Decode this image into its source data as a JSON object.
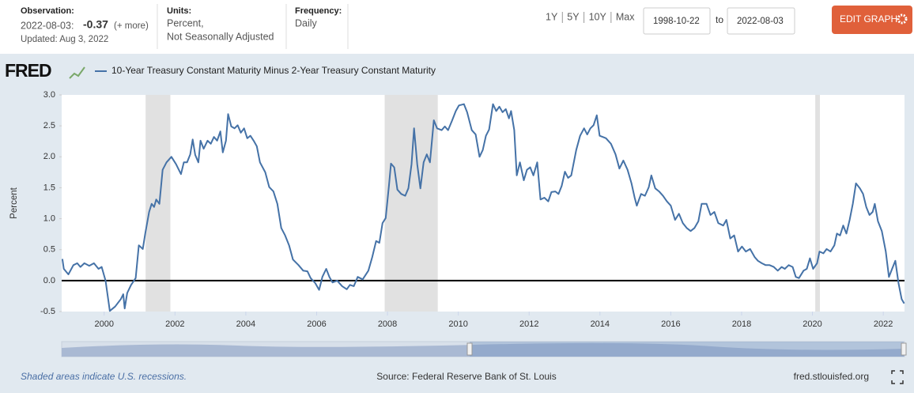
{
  "header": {
    "observation_label": "Observation:",
    "observation_date": "2022-08-03:",
    "observation_value": "-0.37",
    "observation_more": "(+ more)",
    "updated": "Updated: Aug 3, 2022",
    "units_label": "Units:",
    "units": [
      "Percent,",
      "Not Seasonally Adjusted"
    ],
    "frequency_label": "Frequency:",
    "frequency": "Daily",
    "ranges": [
      "1Y",
      "5Y",
      "10Y",
      "Max"
    ],
    "start_date": "1998-10-22",
    "to": "to",
    "end_date": "2022-08-03",
    "edit_button": "EDIT GRAPH"
  },
  "chart_data": {
    "type": "line",
    "logo": "FRED",
    "ylabel": "Percent",
    "series": [
      {
        "name": "10-Year Treasury Constant Maturity Minus 2-Year Treasury Constant Maturity",
        "color": "#4572a7",
        "values": [
          0.35,
          0.19,
          0.1,
          0.25,
          0.28,
          0.22,
          0.28,
          0.24,
          0.28,
          0.19,
          0.22,
          0.0,
          -0.49,
          -0.42,
          -0.3,
          -0.22,
          -0.45,
          -0.2,
          -0.07,
          0.04,
          0.57,
          0.51,
          0.76,
          1.11,
          1.24,
          1.19,
          1.31,
          1.24,
          1.79,
          1.91,
          2.0,
          1.88,
          1.72,
          1.91,
          1.91,
          2.04,
          2.28,
          2.03,
          1.91,
          2.26,
          2.13,
          2.26,
          2.21,
          2.32,
          2.26,
          2.41,
          2.07,
          2.26,
          2.69,
          2.49,
          2.46,
          2.51,
          2.39,
          2.46,
          2.3,
          2.34,
          2.26,
          2.17,
          1.91,
          1.75,
          1.51,
          1.44,
          1.24,
          0.85,
          0.73,
          0.57,
          0.34,
          0.25,
          0.16,
          0.15,
          0.04,
          -0.04,
          -0.15,
          0.06,
          0.19,
          0.06,
          -0.03,
          0.0,
          -0.09,
          -0.14,
          -0.07,
          -0.09,
          0.06,
          0.02,
          0.16,
          0.38,
          0.64,
          0.61,
          0.93,
          1.01,
          1.53,
          1.89,
          1.83,
          1.47,
          1.4,
          1.37,
          1.49,
          1.88,
          2.46,
          1.88,
          1.49,
          1.91,
          2.04,
          1.91,
          2.59,
          2.46,
          2.43,
          2.49,
          2.43,
          2.58,
          2.74,
          2.83,
          2.85,
          2.72,
          2.43,
          2.36,
          2.0,
          2.11,
          2.34,
          2.44,
          2.85,
          2.74,
          2.81,
          2.72,
          2.77,
          2.62,
          2.74,
          2.43,
          1.7,
          1.91,
          1.62,
          1.79,
          1.83,
          1.7,
          1.91,
          1.31,
          1.34,
          1.28,
          1.43,
          1.44,
          1.4,
          1.53,
          1.76,
          1.66,
          1.7,
          2.11,
          2.34,
          2.46,
          2.36,
          2.46,
          2.51,
          2.67,
          2.34,
          2.32,
          2.3,
          2.21,
          2.04,
          1.81,
          1.94,
          1.79,
          1.57,
          1.34,
          1.21,
          1.4,
          1.37,
          1.51,
          1.7,
          1.49,
          1.44,
          1.37,
          1.28,
          1.21,
          0.98,
          1.08,
          0.93,
          0.85,
          0.8,
          0.85,
          0.96,
          1.24,
          1.24,
          1.06,
          1.11,
          0.93,
          0.89,
          0.98,
          0.68,
          0.73,
          0.47,
          0.55,
          0.47,
          0.51,
          0.38,
          0.32,
          0.28,
          0.25,
          0.25,
          0.22,
          0.16,
          0.22,
          0.19,
          0.25,
          0.22,
          0.06,
          0.04,
          0.16,
          0.19,
          0.36,
          0.19,
          0.28,
          0.47,
          0.44,
          0.51,
          0.47,
          0.57,
          0.76,
          0.73,
          0.89,
          0.76,
          0.98,
          1.24,
          1.57,
          1.49,
          1.4,
          1.19,
          1.06,
          1.11,
          1.24,
          0.96,
          0.8,
          0.47,
          0.06,
          0.19,
          0.32,
          -0.04,
          -0.3,
          -0.37
        ]
      }
    ],
    "x": [
      1998.82,
      1998.86,
      1998.99,
      1999.13,
      1999.24,
      1999.33,
      1999.44,
      1999.58,
      1999.71,
      1999.84,
      1999.93,
      2000.04,
      2000.16,
      2000.31,
      2000.47,
      2000.54,
      2000.58,
      2000.65,
      2000.76,
      2000.89,
      2000.98,
      2001.09,
      2001.16,
      2001.27,
      2001.34,
      2001.41,
      2001.47,
      2001.56,
      2001.65,
      2001.76,
      2001.9,
      2002.03,
      2002.17,
      2002.25,
      2002.34,
      2002.43,
      2002.5,
      2002.57,
      2002.66,
      2002.72,
      2002.81,
      2002.92,
      2003.01,
      2003.1,
      2003.19,
      2003.28,
      2003.35,
      2003.44,
      2003.5,
      2003.59,
      2003.68,
      2003.77,
      2003.86,
      2003.95,
      2004.04,
      2004.13,
      2004.22,
      2004.31,
      2004.4,
      2004.55,
      2004.66,
      2004.78,
      2004.89,
      2005.0,
      2005.11,
      2005.22,
      2005.33,
      2005.49,
      2005.62,
      2005.74,
      2005.83,
      2005.96,
      2006.07,
      2006.16,
      2006.27,
      2006.36,
      2006.45,
      2006.58,
      2006.72,
      2006.85,
      2006.94,
      2007.05,
      2007.16,
      2007.3,
      2007.46,
      2007.57,
      2007.68,
      2007.77,
      2007.86,
      2007.95,
      2008.04,
      2008.1,
      2008.19,
      2008.28,
      2008.39,
      2008.5,
      2008.59,
      2008.68,
      2008.75,
      2008.84,
      2008.93,
      2009.02,
      2009.11,
      2009.2,
      2009.31,
      2009.4,
      2009.53,
      2009.62,
      2009.71,
      2009.82,
      2009.93,
      2010.02,
      2010.16,
      2010.25,
      2010.38,
      2010.49,
      2010.6,
      2010.69,
      2010.78,
      2010.87,
      2010.98,
      2011.07,
      2011.16,
      2011.25,
      2011.34,
      2011.43,
      2011.49,
      2011.58,
      2011.65,
      2011.74,
      2011.85,
      2011.94,
      2012.03,
      2012.12,
      2012.23,
      2012.32,
      2012.43,
      2012.54,
      2012.63,
      2012.74,
      2012.83,
      2012.92,
      2013.01,
      2013.1,
      2013.19,
      2013.33,
      2013.44,
      2013.55,
      2013.64,
      2013.73,
      2013.82,
      2013.91,
      2013.99,
      2014.08,
      2014.17,
      2014.31,
      2014.44,
      2014.55,
      2014.66,
      2014.78,
      2014.89,
      2014.98,
      2015.04,
      2015.16,
      2015.27,
      2015.38,
      2015.45,
      2015.56,
      2015.67,
      2015.78,
      2015.89,
      2016.0,
      2016.12,
      2016.23,
      2016.34,
      2016.45,
      2016.56,
      2016.67,
      2016.78,
      2016.87,
      2017.01,
      2017.12,
      2017.23,
      2017.34,
      2017.48,
      2017.57,
      2017.68,
      2017.79,
      2017.9,
      2018.01,
      2018.12,
      2018.24,
      2018.37,
      2018.46,
      2018.57,
      2018.68,
      2018.79,
      2018.91,
      2019.02,
      2019.13,
      2019.22,
      2019.33,
      2019.44,
      2019.53,
      2019.62,
      2019.75,
      2019.84,
      2019.93,
      2020.02,
      2020.13,
      2020.2,
      2020.31,
      2020.4,
      2020.51,
      2020.62,
      2020.69,
      2020.78,
      2020.87,
      2020.96,
      2021.05,
      2021.14,
      2021.23,
      2021.34,
      2021.43,
      2021.52,
      2021.61,
      2021.7,
      2021.76,
      2021.85,
      2021.96,
      2022.07,
      2022.16,
      2022.25,
      2022.34,
      2022.43,
      2022.52,
      2022.59
    ],
    "xlim": [
      1998.8,
      2022.6
    ],
    "xticks": [
      2000,
      2002,
      2004,
      2006,
      2008,
      2010,
      2012,
      2014,
      2016,
      2018,
      2020,
      2022
    ],
    "ylim": [
      -0.5,
      3.0
    ],
    "yticks": [
      {
        "value": 3,
        "label": "3.0"
      },
      2.5,
      {
        "value": 2,
        "label": "2.0"
      },
      1.5,
      {
        "value": 1,
        "label": "1.0"
      },
      0.5,
      {
        "value": 0,
        "label": "0.0"
      },
      -0.5
    ],
    "recessions": [
      [
        2001.17,
        2001.87
      ],
      [
        2007.92,
        2009.42
      ],
      [
        2020.08,
        2020.21
      ]
    ],
    "recession_color": "#e1e1e1"
  },
  "footer": {
    "note": "Shaded areas indicate U.S. recessions.",
    "source": "Source: Federal Reserve Bank of St. Louis",
    "site": "fred.stlouisfed.org"
  }
}
